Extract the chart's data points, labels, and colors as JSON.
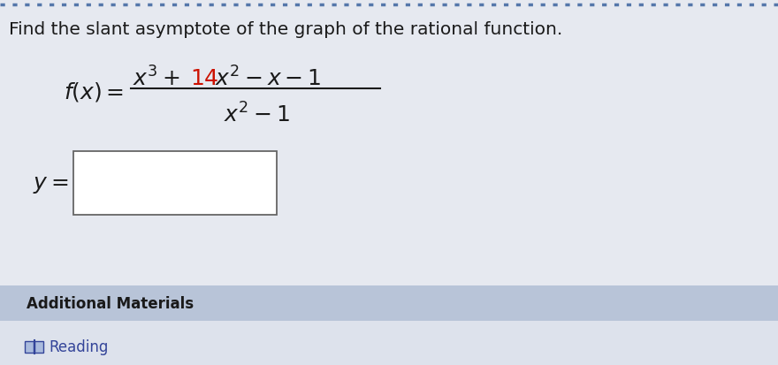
{
  "title": "Find the slant asymptote of the graph of the rational function.",
  "title_fontsize": 14.5,
  "title_color": "#1a1a1a",
  "background_color": "#e6e9f0",
  "top_border_color": "#5577aa",
  "additional_bg": "#b8c4d8",
  "reading_bg": "#dde2ec",
  "font_color_normal": "#1a1a1a",
  "font_color_14": "#cc1100",
  "font_size_math": 18,
  "additional_text": "Additional Materials",
  "reading_text": "Reading"
}
